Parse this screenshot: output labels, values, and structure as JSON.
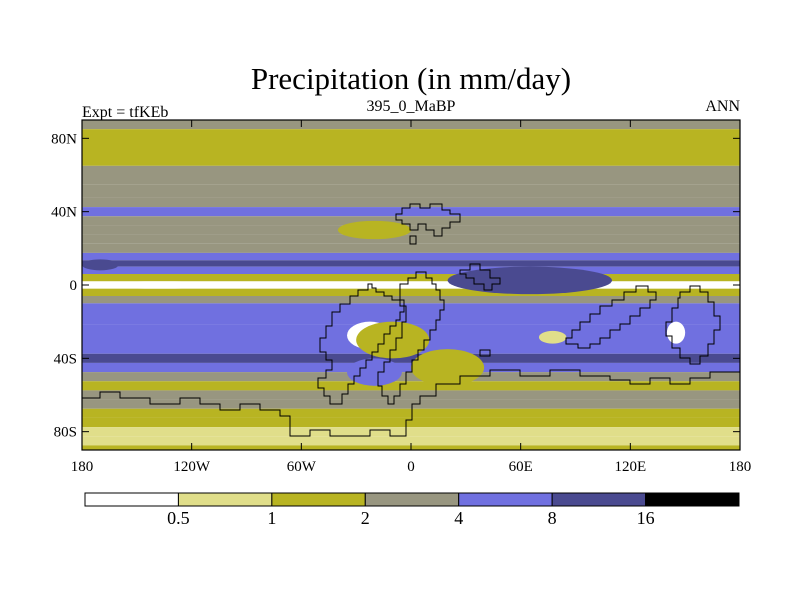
{
  "chart_data": {
    "type": "heatmap",
    "title": "Precipitation (in mm/day)",
    "left_string": "Expt = tfKEb",
    "center_string": "395_0_MaBP",
    "right_string": "ANN",
    "xlim": [
      -180,
      180
    ],
    "ylim": [
      -90,
      90
    ],
    "x_ticks": [
      {
        "value": -180,
        "label": "180"
      },
      {
        "value": -120,
        "label": "120W"
      },
      {
        "value": -60,
        "label": "60W"
      },
      {
        "value": 0,
        "label": "0"
      },
      {
        "value": 60,
        "label": "60E"
      },
      {
        "value": 120,
        "label": "120E"
      },
      {
        "value": 180,
        "label": "180"
      }
    ],
    "y_ticks": [
      {
        "value": 80,
        "label": "80N"
      },
      {
        "value": 40,
        "label": "40N"
      },
      {
        "value": 0,
        "label": "0"
      },
      {
        "value": -40,
        "label": "40S"
      },
      {
        "value": -80,
        "label": "80S"
      }
    ],
    "levels": [
      "0.5",
      "1",
      "2",
      "4",
      "8",
      "16"
    ],
    "level_values": [
      0.5,
      1,
      2,
      4,
      8,
      16
    ],
    "colors": [
      "#ffffff",
      "#e0de8a",
      "#b8b422",
      "#989680",
      "#7070e0",
      "#4a4a90",
      "#000000"
    ],
    "zonal_mean_profile": [
      {
        "lat": 90,
        "value": 3.0
      },
      {
        "lat": 80,
        "value": 1.6
      },
      {
        "lat": 70,
        "value": 1.4
      },
      {
        "lat": 60,
        "value": 2.5
      },
      {
        "lat": 50,
        "value": 3.0
      },
      {
        "lat": 45,
        "value": 3.6
      },
      {
        "lat": 40,
        "value": 4.5
      },
      {
        "lat": 35,
        "value": 3.0
      },
      {
        "lat": 30,
        "value": 3.0
      },
      {
        "lat": 25,
        "value": 2.0
      },
      {
        "lat": 20,
        "value": 3.0
      },
      {
        "lat": 15,
        "value": 5.0
      },
      {
        "lat": 12,
        "value": 9.0
      },
      {
        "lat": 8,
        "value": 5.0
      },
      {
        "lat": 4,
        "value": 1.5
      },
      {
        "lat": 0,
        "value": 0.4
      },
      {
        "lat": -4,
        "value": 1.5
      },
      {
        "lat": -8,
        "value": 3.0
      },
      {
        "lat": -12,
        "value": 5.0
      },
      {
        "lat": -18,
        "value": 4.5
      },
      {
        "lat": -25,
        "value": 5.0
      },
      {
        "lat": -35,
        "value": 5.0
      },
      {
        "lat": -40,
        "value": 8.5
      },
      {
        "lat": -45,
        "value": 5.0
      },
      {
        "lat": -50,
        "value": 3.0
      },
      {
        "lat": -55,
        "value": 1.5
      },
      {
        "lat": -60,
        "value": 3.5
      },
      {
        "lat": -65,
        "value": 2.5
      },
      {
        "lat": -70,
        "value": 1.5
      },
      {
        "lat": -75,
        "value": 1.5
      },
      {
        "lat": -80,
        "value": 0.8
      },
      {
        "lat": -85,
        "value": 0.8
      },
      {
        "lat": -90,
        "value": 1.5
      }
    ],
    "regional_features": [
      {
        "lon": [
          -180,
          -95
        ],
        "lat": [
          2,
          -2
        ],
        "value": 0.3
      },
      {
        "lon": [
          -35,
          -10
        ],
        "lat": [
          -20,
          -35
        ],
        "value": 0.3
      },
      {
        "lon": [
          140,
          150
        ],
        "lat": [
          -20,
          -32
        ],
        "value": 0.3
      },
      {
        "lon": [
          70,
          85
        ],
        "lat": [
          -25,
          -32
        ],
        "value": 0.7
      },
      {
        "lon": [
          20,
          110
        ],
        "lat": [
          10,
          -5
        ],
        "value": 10.0
      },
      {
        "lon": [
          -180,
          -160
        ],
        "lat": [
          14,
          8
        ],
        "value": 10.0
      },
      {
        "lon": [
          -30,
          10
        ],
        "lat": [
          -20,
          -40
        ],
        "value": 1.5
      },
      {
        "lon": [
          -40,
          0
        ],
        "lat": [
          35,
          25
        ],
        "value": 1.5
      },
      {
        "lon": [
          -35,
          -5
        ],
        "lat": [
          -40,
          -55
        ],
        "value": 6.0
      },
      {
        "lon": [
          0,
          40
        ],
        "lat": [
          -35,
          -55
        ],
        "value": 1.5
      }
    ],
    "legend_position": "bottom",
    "grid": false
  }
}
